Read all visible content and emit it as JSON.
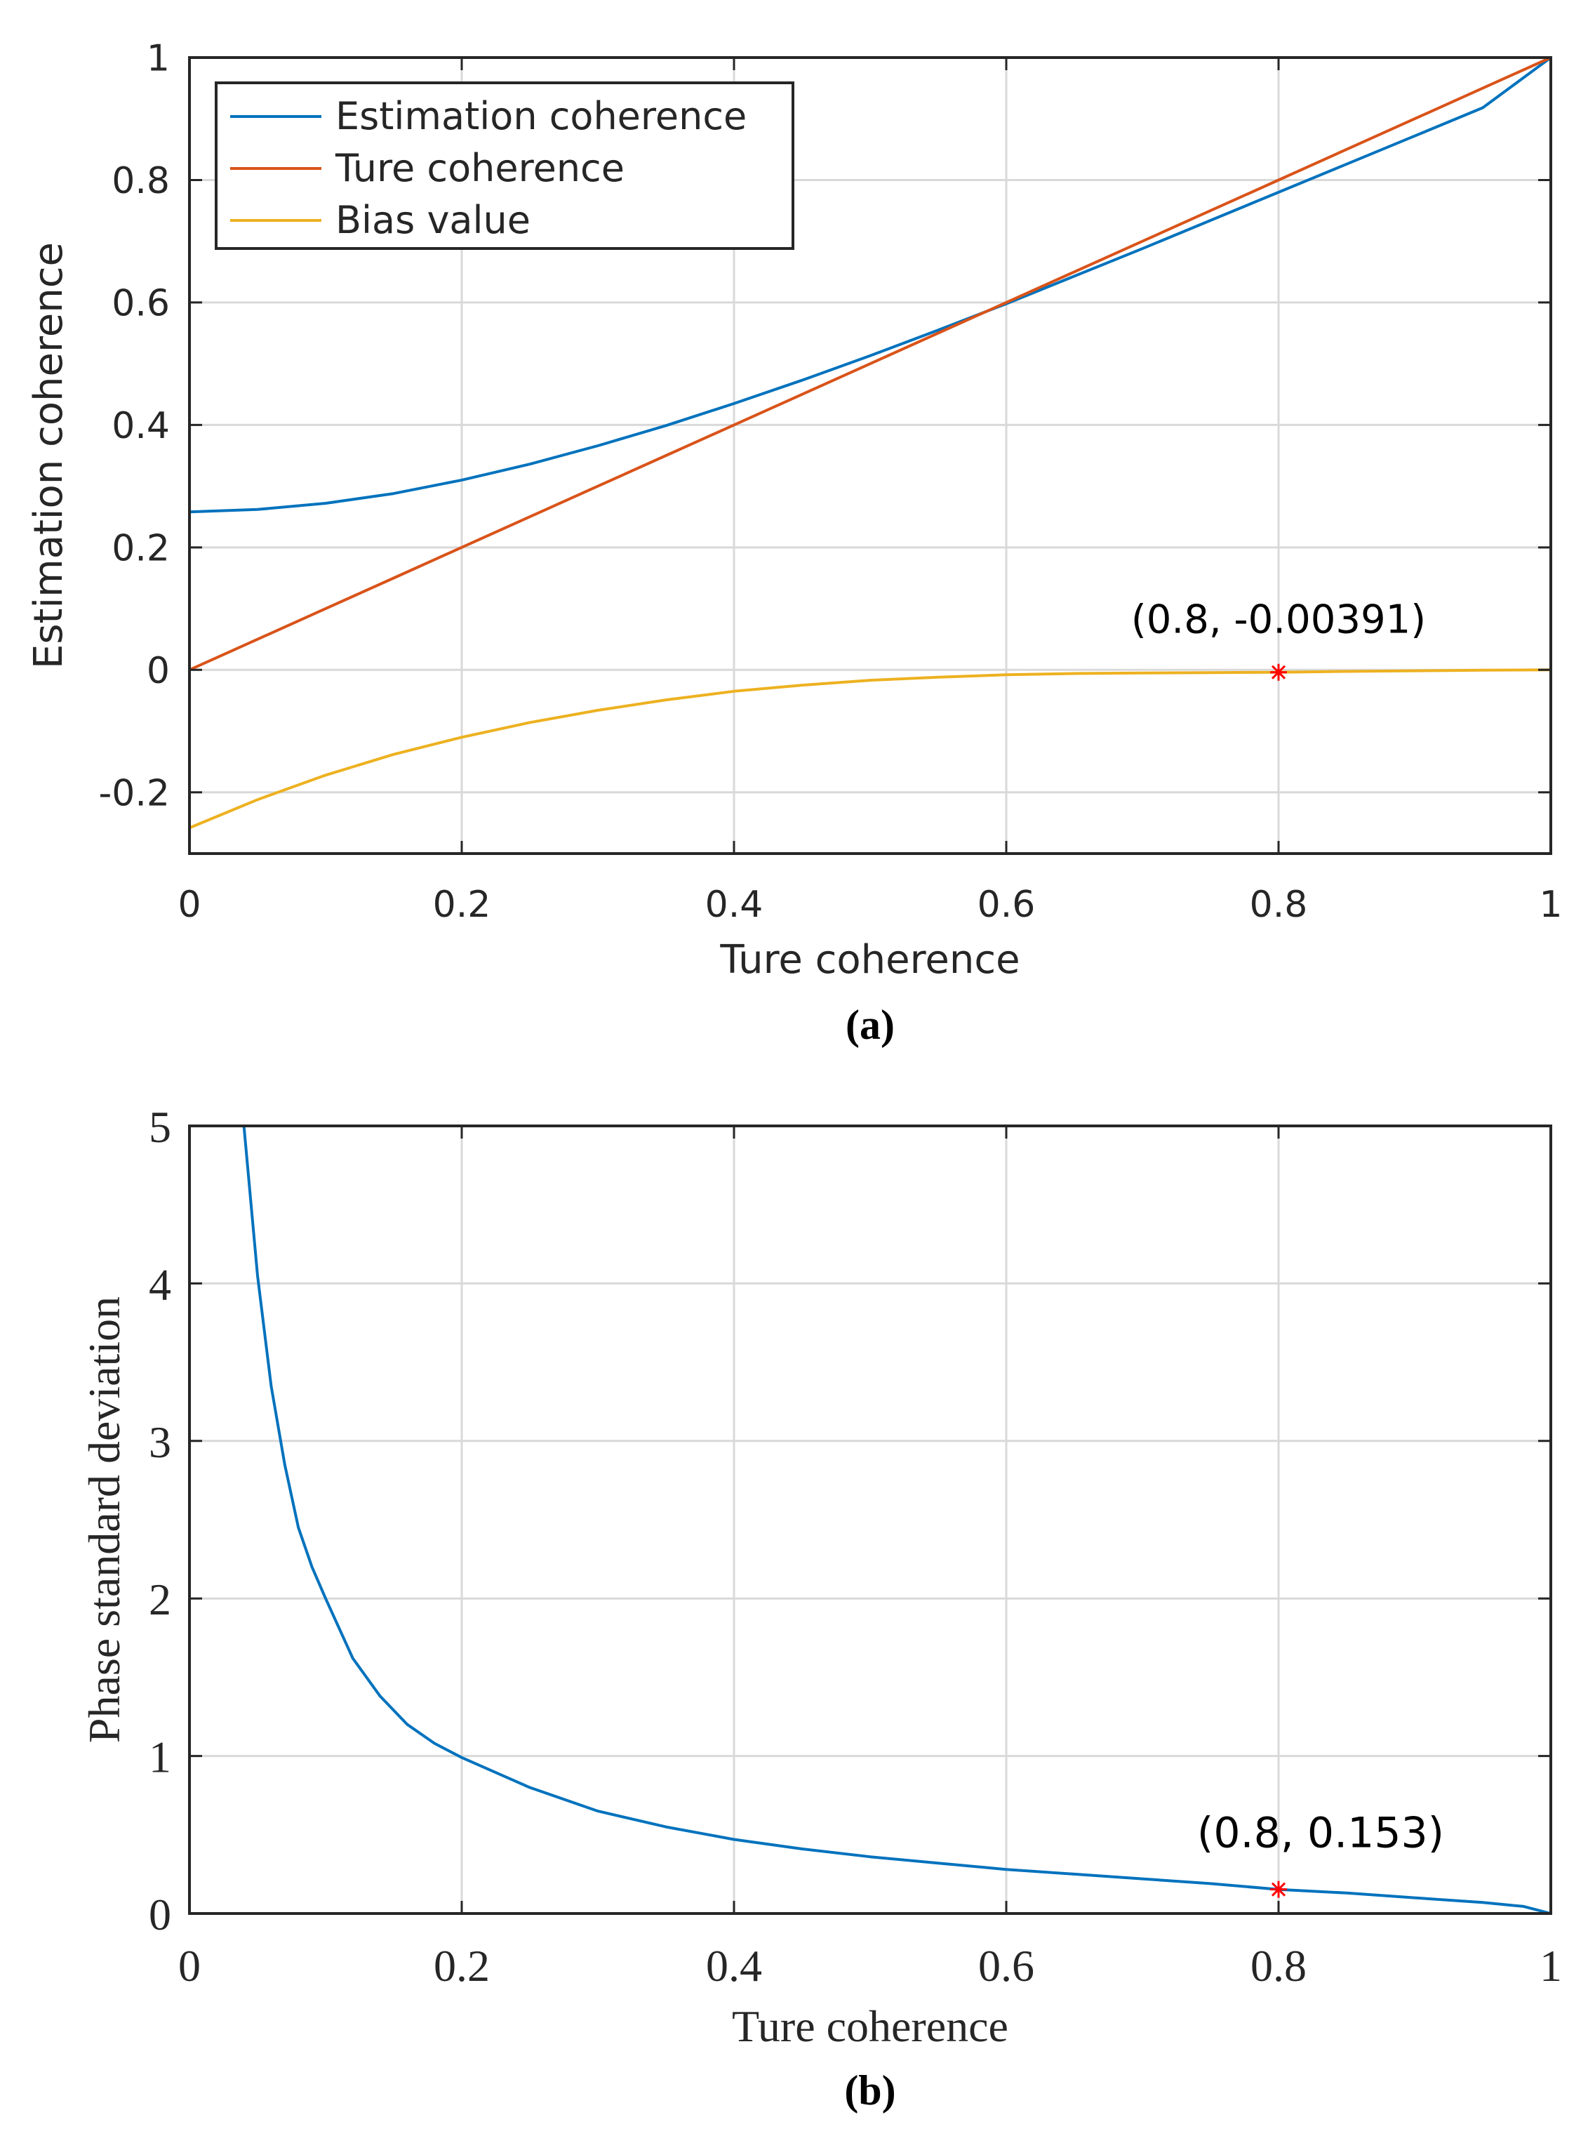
{
  "colors": {
    "blue": "#0072BD",
    "orange": "#D95319",
    "yellow": "#EDB120",
    "marker": "#FF0000",
    "grid": "#d9d9d9",
    "axis": "#262626"
  },
  "chart_data": [
    {
      "type": "line",
      "panel_label": "(a)",
      "xlabel": "Ture coherence",
      "ylabel": "Estimation coherence",
      "xlim": [
        0,
        1
      ],
      "ylim": [
        -0.3,
        1
      ],
      "grid": true,
      "legend_position": "top-left",
      "x_ticks": [
        0,
        0.2,
        0.4,
        0.6,
        0.8,
        1
      ],
      "x_tick_labels": [
        "0",
        "0.2",
        "0.4",
        "0.6",
        "0.8",
        "1"
      ],
      "y_ticks": [
        -0.2,
        0,
        0.2,
        0.4,
        0.6,
        0.8,
        1
      ],
      "y_tick_labels": [
        "-0.2",
        "0",
        "0.2",
        "0.4",
        "0.6",
        "0.8",
        "1"
      ],
      "x": [
        0,
        0.05,
        0.1,
        0.15,
        0.2,
        0.25,
        0.3,
        0.35,
        0.4,
        0.45,
        0.5,
        0.55,
        0.6,
        0.65,
        0.7,
        0.75,
        0.8,
        0.85,
        0.9,
        0.95,
        1.0
      ],
      "series": [
        {
          "name": "Estimation coherence",
          "color": "#0072BD",
          "values": [
            0.258,
            0.262,
            0.272,
            0.288,
            0.31,
            0.336,
            0.366,
            0.399,
            0.435,
            0.473,
            0.513,
            0.555,
            0.598,
            0.643,
            0.688,
            0.734,
            0.78,
            0.826,
            0.872,
            0.918,
            1.0
          ]
        },
        {
          "name": "Ture coherence",
          "color": "#D95319",
          "values": [
            0,
            0.05,
            0.1,
            0.15,
            0.2,
            0.25,
            0.3,
            0.35,
            0.4,
            0.45,
            0.5,
            0.55,
            0.6,
            0.65,
            0.7,
            0.75,
            0.8,
            0.85,
            0.9,
            0.95,
            1.0
          ]
        },
        {
          "name": "Bias value",
          "color": "#EDB120",
          "values": [
            -0.258,
            -0.212,
            -0.172,
            -0.138,
            -0.11,
            -0.086,
            -0.066,
            -0.049,
            -0.035,
            -0.025,
            -0.017,
            -0.012,
            -0.008,
            -0.006,
            -0.005,
            -0.0045,
            -0.00391,
            -0.0025,
            -0.0015,
            -0.0005,
            0.0
          ]
        }
      ],
      "annotation": {
        "x": 0.8,
        "y": -0.00391,
        "text": "(0.8, -0.00391)"
      }
    },
    {
      "type": "line",
      "panel_label": "(b)",
      "xlabel": "Ture coherence",
      "ylabel": "Phase standard deviation",
      "xlim": [
        0,
        1
      ],
      "ylim": [
        0,
        5
      ],
      "grid": true,
      "x_ticks": [
        0,
        0.2,
        0.4,
        0.6,
        0.8,
        1
      ],
      "x_tick_labels": [
        "0",
        "0.2",
        "0.4",
        "0.6",
        "0.8",
        "1"
      ],
      "y_ticks": [
        0,
        1,
        2,
        3,
        4,
        5
      ],
      "y_tick_labels": [
        "0",
        "1",
        "2",
        "3",
        "4",
        "5"
      ],
      "x": [
        0.04,
        0.05,
        0.06,
        0.07,
        0.08,
        0.09,
        0.1,
        0.12,
        0.14,
        0.16,
        0.18,
        0.2,
        0.25,
        0.3,
        0.35,
        0.4,
        0.45,
        0.5,
        0.55,
        0.6,
        0.65,
        0.7,
        0.75,
        0.8,
        0.85,
        0.9,
        0.95,
        0.98,
        1.0
      ],
      "series": [
        {
          "name": "Phase standard deviation",
          "color": "#0072BD",
          "values": [
            5.0,
            4.05,
            3.35,
            2.85,
            2.45,
            2.2,
            2.0,
            1.62,
            1.38,
            1.2,
            1.08,
            0.99,
            0.8,
            0.65,
            0.55,
            0.47,
            0.41,
            0.36,
            0.32,
            0.28,
            0.25,
            0.22,
            0.19,
            0.153,
            0.13,
            0.1,
            0.07,
            0.045,
            0.0
          ]
        }
      ],
      "annotation": {
        "x": 0.8,
        "y": 0.153,
        "text": "(0.8, 0.153)"
      }
    }
  ]
}
